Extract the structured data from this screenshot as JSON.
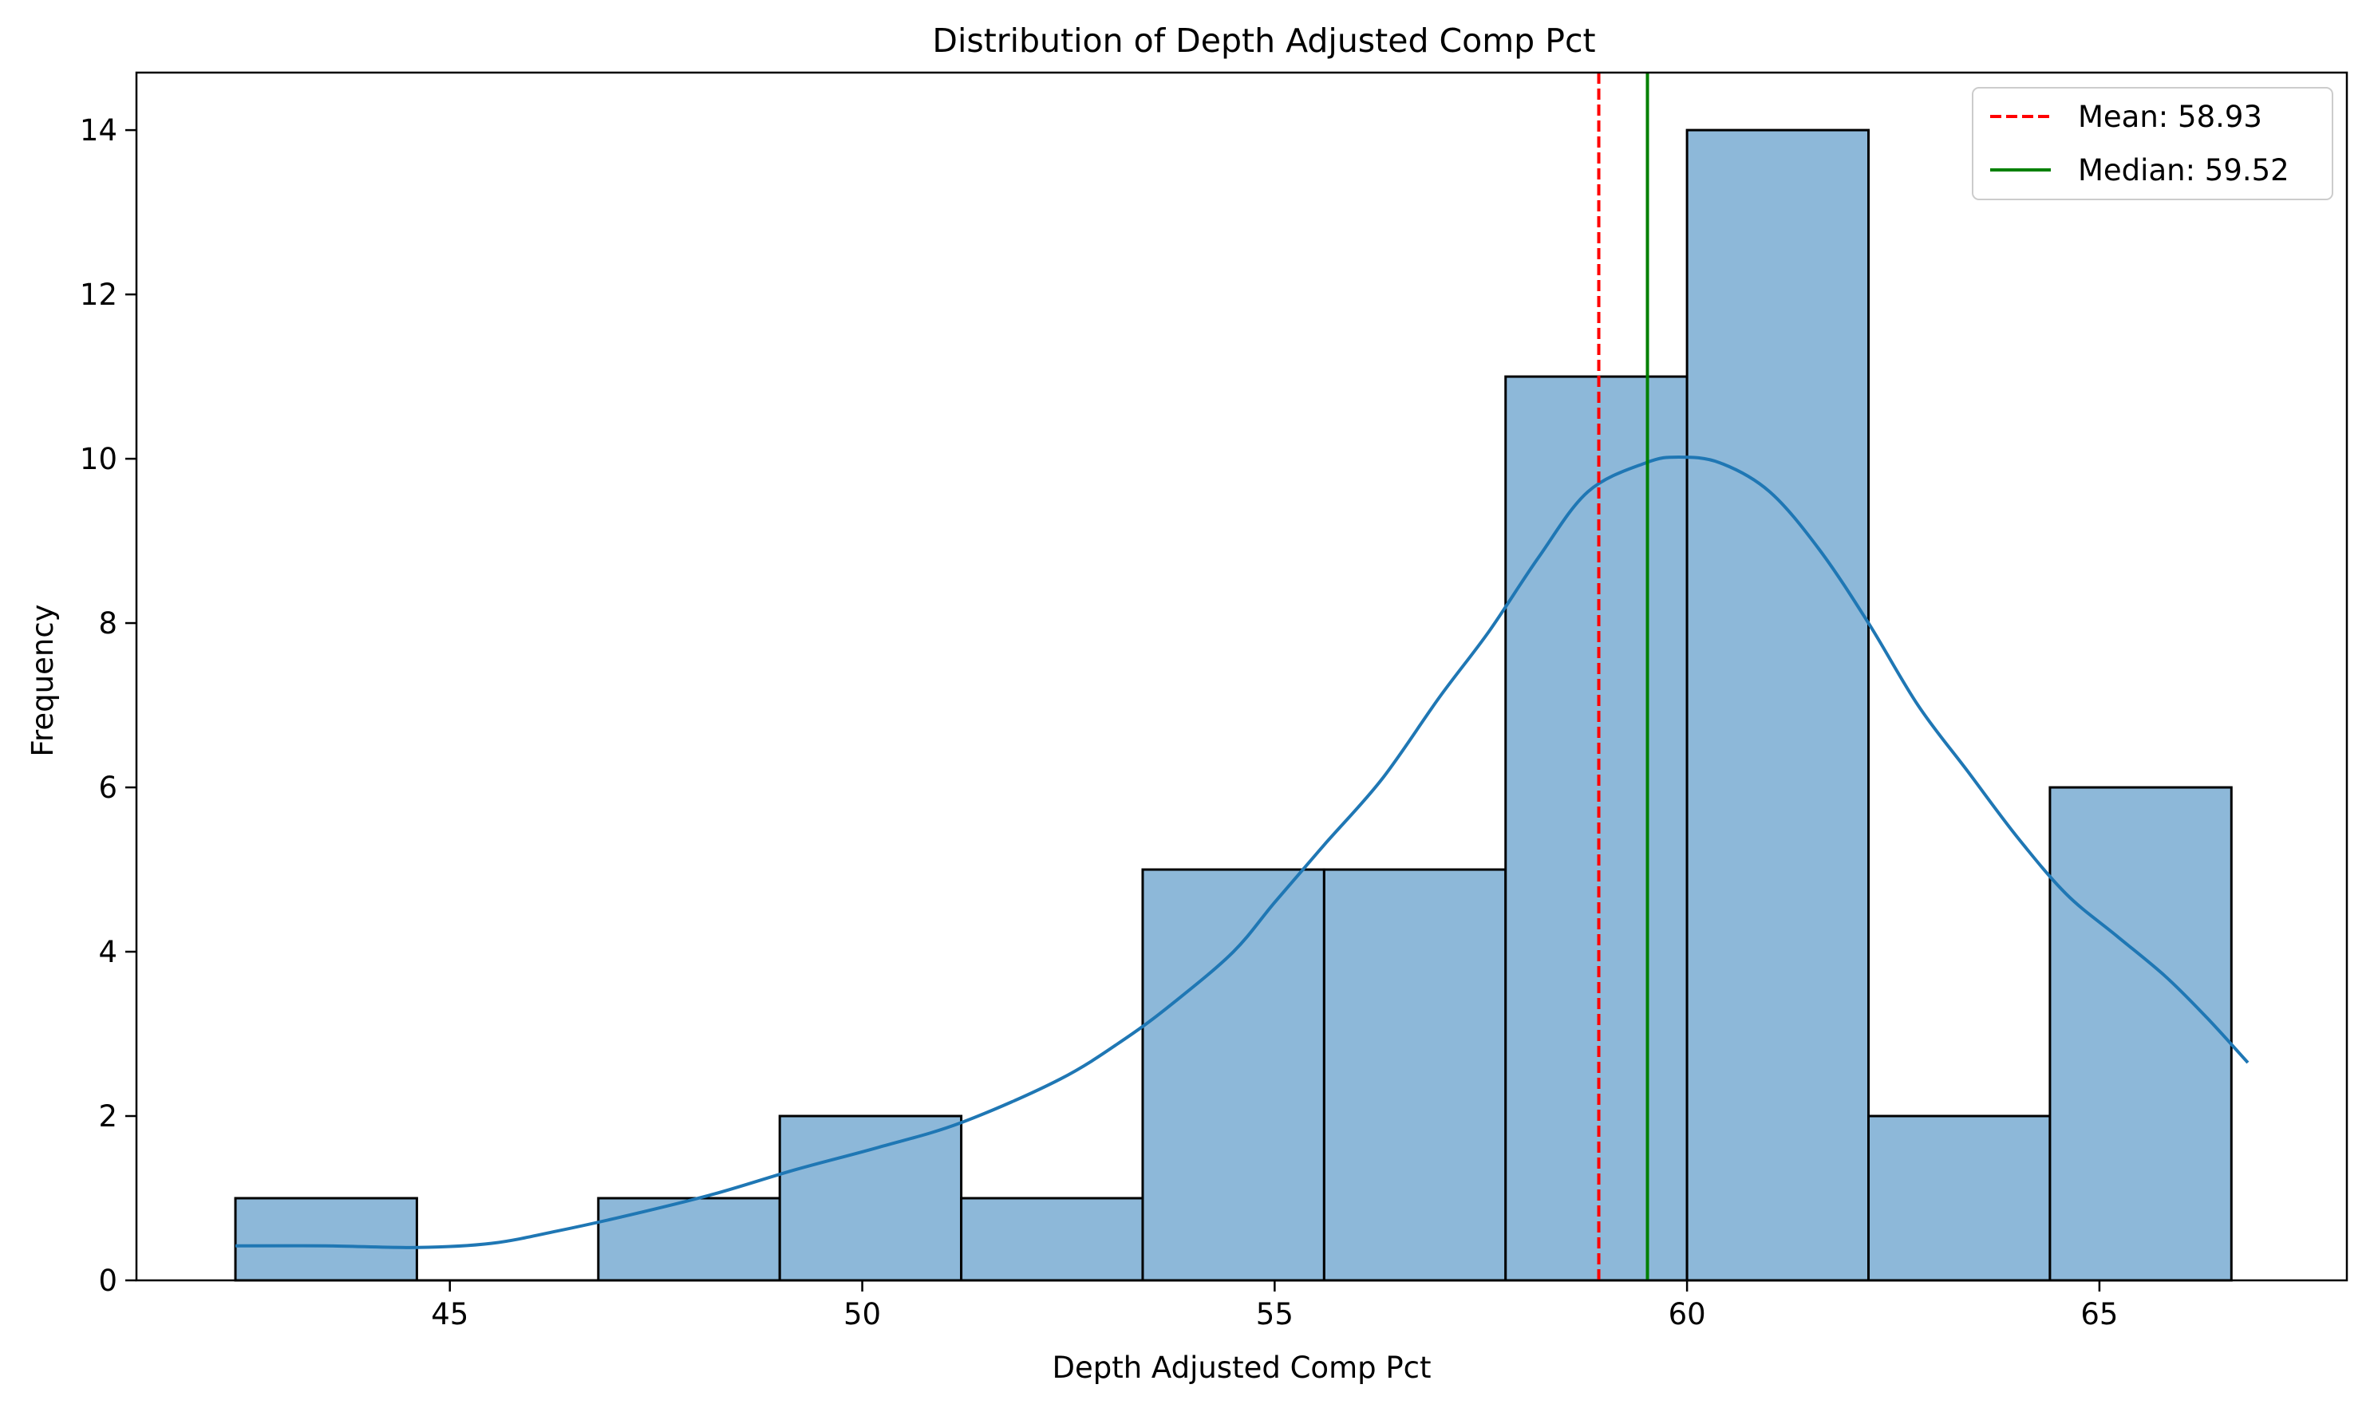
{
  "chart_data": {
    "type": "bar",
    "title": "Distribution of Depth Adjusted Comp Pct",
    "xlabel": "Depth Adjusted Comp Pct",
    "ylabel": "Frequency",
    "xlim": [
      41.2,
      68.0
    ],
    "ylim": [
      0,
      14.7
    ],
    "xticks": [
      45,
      50,
      55,
      60,
      65
    ],
    "yticks": [
      0,
      2,
      4,
      6,
      8,
      10,
      12,
      14
    ],
    "bin_edges": [
      42.4,
      44.6,
      46.8,
      49.0,
      51.2,
      53.4,
      55.6,
      57.8,
      60.0,
      62.2,
      64.4,
      66.6
    ],
    "counts": [
      1,
      0,
      1,
      2,
      1,
      5,
      5,
      11,
      14,
      2,
      6
    ],
    "bar_color": "#8db8d9",
    "bar_edge_color": "#000000",
    "kde": {
      "color": "#1f77b4",
      "x": [
        42.4,
        43.5,
        44.6,
        45.5,
        46.3,
        47.2,
        48.2,
        49.2,
        50.2,
        51.2,
        52.4,
        53.2,
        53.8,
        54.5,
        55.0,
        55.6,
        56.3,
        57.0,
        57.6,
        58.2,
        58.8,
        59.5,
        59.9,
        60.4,
        61.0,
        61.6,
        62.2,
        62.8,
        63.4,
        64.0,
        64.6,
        65.2,
        65.8,
        66.3,
        66.8
      ],
      "y": [
        0.42,
        0.42,
        0.4,
        0.45,
        0.6,
        0.8,
        1.05,
        1.35,
        1.62,
        1.92,
        2.45,
        2.95,
        3.4,
        4.0,
        4.6,
        5.3,
        6.1,
        7.1,
        7.9,
        8.8,
        9.6,
        9.95,
        10.02,
        9.95,
        9.6,
        8.9,
        8.0,
        7.0,
        6.2,
        5.4,
        4.7,
        4.2,
        3.7,
        3.2,
        2.65
      ]
    },
    "reference_lines": [
      {
        "label": "Mean: 58.93",
        "x": 58.93,
        "color": "#ff0000",
        "style": "dashed"
      },
      {
        "label": "Median: 59.52",
        "x": 59.52,
        "color": "#008000",
        "style": "solid"
      }
    ],
    "legend_position": "top-right",
    "grid": false
  }
}
